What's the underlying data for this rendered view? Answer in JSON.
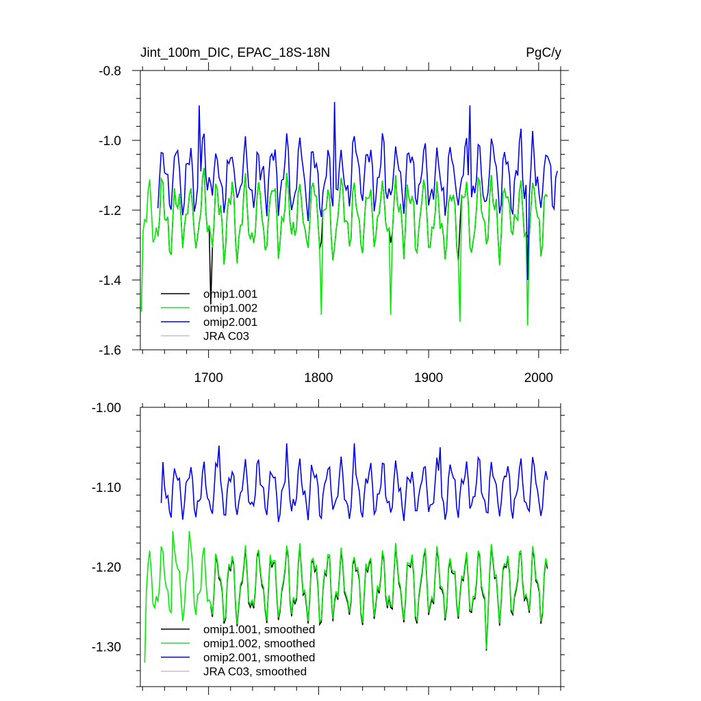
{
  "colors": {
    "omip1_001": "#000000",
    "omip1_002": "#00ee00",
    "omip2_001": "#0000ee",
    "jra_c03": "#c0c0c0",
    "frame": "#000000",
    "background": "#ffffff"
  },
  "chart_data": [
    {
      "type": "line",
      "title": "Jint_100m_DIC, EPAC_18S-18N",
      "units": "PgC/y",
      "xlabel": "",
      "ylabel": "",
      "xlim": [
        1638,
        2020
      ],
      "ylim": [
        -1.6,
        -0.8
      ],
      "xticks": [
        1700,
        1800,
        1900,
        2000
      ],
      "xtick_labels": [
        "1700",
        "1800",
        "1900",
        "2000"
      ],
      "yticks": [
        -1.6,
        -1.4,
        -1.2,
        -1.0,
        -0.8
      ],
      "ytick_labels": [
        "-1.6",
        "-1.4",
        "-1.2",
        "-1.0",
        "-0.8"
      ],
      "legend_position": "bottom-left",
      "series": [
        {
          "name": "omip1.001",
          "key": "omip1_001",
          "x_start": 1653,
          "x_end": 2009,
          "base": -1.215,
          "amp": 0.08,
          "noise": 0.055,
          "seed": 11,
          "spikes": [
            [
              1702,
              -1.47
            ]
          ]
        },
        {
          "name": "omip1.002",
          "key": "omip1_002",
          "x_start": 1638,
          "x_end": 2009,
          "base": -1.215,
          "amp": 0.08,
          "noise": 0.055,
          "seed": 11,
          "spikes": [
            [
              1639,
              -1.49
            ],
            [
              1802,
              -1.5
            ],
            [
              1865,
              -1.5
            ],
            [
              1929,
              -1.52
            ],
            [
              1990,
              -1.53
            ]
          ]
        },
        {
          "name": "omip2.001",
          "key": "omip2_001",
          "x_start": 1653,
          "x_end": 2018,
          "base": -1.105,
          "amp": 0.075,
          "noise": 0.06,
          "seed": 29,
          "spikes": [
            [
              1692,
              -0.9
            ],
            [
              1815,
              -0.89
            ],
            [
              1938,
              -0.9
            ],
            [
              1990,
              -1.4
            ]
          ]
        },
        {
          "name": "JRA C03",
          "key": "jra_c03",
          "x_start": null,
          "x_end": null
        }
      ]
    },
    {
      "type": "line",
      "title": "",
      "xlabel": "",
      "ylabel": "",
      "xlim": [
        1638,
        2020
      ],
      "ylim": [
        -1.35,
        -1.0
      ],
      "xticks": [
        1700,
        1800,
        1900,
        2000
      ],
      "yticks": [
        -1.3,
        -1.2,
        -1.1,
        -1.0
      ],
      "ytick_labels": [
        "-1.30",
        "-1.20",
        "-1.10",
        "-1.00"
      ],
      "legend_position": "bottom-left",
      "series": [
        {
          "name": "omip1.001, smoothed",
          "key": "omip1_001",
          "x_start": 1701,
          "x_end": 2009,
          "base": -1.22,
          "amp": 0.035,
          "noise": 0.012,
          "seed": 5,
          "offset": -0.003,
          "spikes": [
            [
              1953,
              -1.305
            ]
          ]
        },
        {
          "name": "omip1.002, smoothed",
          "key": "omip1_002",
          "x_start": 1641,
          "x_end": 2009,
          "base": -1.22,
          "amp": 0.035,
          "noise": 0.012,
          "seed": 5,
          "offset": 0.0,
          "spikes": [
            [
              1641,
              -1.32
            ],
            [
              1643,
              -1.23
            ],
            [
              1668,
              -1.155
            ],
            [
              1683,
              -1.155
            ],
            [
              1953,
              -1.303
            ]
          ]
        },
        {
          "name": "omip2.001, smoothed",
          "key": "omip2_001",
          "x_start": 1657,
          "x_end": 2009,
          "base": -1.103,
          "amp": 0.027,
          "noise": 0.01,
          "seed": 17,
          "offset": 0.0,
          "spikes": [
            [
              1657,
              -1.12
            ],
            [
              1709,
              -1.048
            ],
            [
              1771,
              -1.045
            ],
            [
              1832,
              -1.045
            ],
            [
              1910,
              -1.05
            ]
          ]
        },
        {
          "name": "JRA C03, smoothed",
          "key": "jra_c03",
          "x_start": null,
          "x_end": null
        }
      ]
    }
  ]
}
